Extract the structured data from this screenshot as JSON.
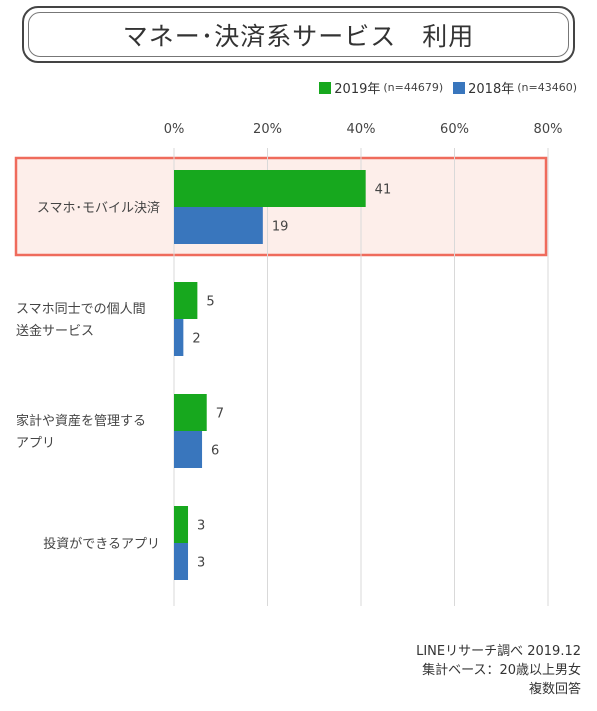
{
  "title": "マネー･決済系サービス　利用",
  "legend": [
    {
      "label": "2019年",
      "n": "(n=44679)",
      "color": "#17a81e"
    },
    {
      "label": "2018年",
      "n": "(n=43460)",
      "color": "#3976bd"
    }
  ],
  "chart_data": {
    "type": "bar",
    "orientation": "horizontal",
    "x_tick_labels": [
      "0%",
      "20%",
      "40%",
      "60%",
      "80%"
    ],
    "xlim": [
      0,
      80
    ],
    "grid": true,
    "legend_position": "top-right",
    "categories": [
      [
        "スマホ･モバイル決済"
      ],
      [
        "スマホ同士での個人間",
        "送金サービス"
      ],
      [
        "家計や資産を管理する",
        "アプリ"
      ],
      [
        "投資ができるアプリ"
      ]
    ],
    "series": [
      {
        "name": "2019年",
        "values": [
          41,
          5,
          7,
          3
        ],
        "color": "#17a81e"
      },
      {
        "name": "2018年",
        "values": [
          19,
          2,
          6,
          3
        ],
        "color": "#3976bd"
      }
    ],
    "highlight_index": 0,
    "highlight_color": "#ef6b5c"
  },
  "footer": {
    "line1": "LINEリサーチ調べ 2019.12",
    "line2": "集計ベース：20歳以上男女",
    "line3": "複数回答"
  }
}
